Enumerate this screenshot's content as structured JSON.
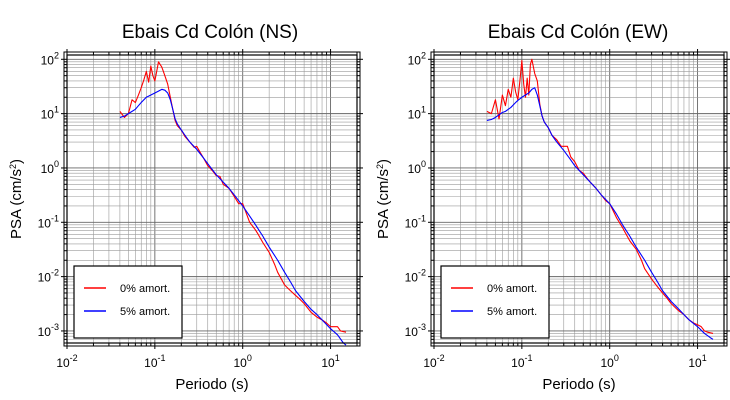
{
  "chart_data": [
    {
      "type": "line",
      "title": "Ebais Cd Colón (NS)",
      "xlabel": "Periodo (s)",
      "ylabel_main": "PSA (cm/s",
      "ylabel_sup": "2",
      "ylabel_tail": ")",
      "xscale": "log",
      "yscale": "log",
      "xlim": [
        0.01,
        20
      ],
      "ylim": [
        0.0006,
        120
      ],
      "grid": true,
      "legend_position": "bottom-left",
      "x_ticks": [
        {
          "value": 0.01,
          "base": "10",
          "exp": "-2"
        },
        {
          "value": 0.1,
          "base": "10",
          "exp": "-1"
        },
        {
          "value": 1,
          "base": "10",
          "exp": "0"
        },
        {
          "value": 10,
          "base": "10",
          "exp": "1"
        }
      ],
      "y_ticks": [
        {
          "value": 0.001,
          "base": "10",
          "exp": "-3"
        },
        {
          "value": 0.01,
          "base": "10",
          "exp": "-2"
        },
        {
          "value": 0.1,
          "base": "10",
          "exp": "-1"
        },
        {
          "value": 1,
          "base": "10",
          "exp": "0"
        },
        {
          "value": 10,
          "base": "10",
          "exp": "1"
        },
        {
          "value": 100,
          "base": "10",
          "exp": "2"
        }
      ],
      "series": [
        {
          "name": "0% amort.",
          "color": "#ff0000",
          "x": [
            0.04,
            0.045,
            0.05,
            0.055,
            0.06,
            0.065,
            0.07,
            0.075,
            0.08,
            0.085,
            0.09,
            0.095,
            0.1,
            0.105,
            0.11,
            0.115,
            0.12,
            0.13,
            0.14,
            0.15,
            0.16,
            0.17,
            0.18,
            0.2,
            0.22,
            0.25,
            0.28,
            0.3,
            0.33,
            0.36,
            0.4,
            0.45,
            0.5,
            0.55,
            0.6,
            0.7,
            0.8,
            0.9,
            1.0,
            1.2,
            1.4,
            1.5,
            1.7,
            2.0,
            2.3,
            2.5,
            3.0,
            3.5,
            4.0,
            4.5,
            5.0,
            6.0,
            7.0,
            8.0,
            9.0,
            10.0,
            11.0,
            12.0,
            13.0,
            15.0
          ],
          "y": [
            11,
            8.5,
            10,
            18,
            16,
            22,
            30,
            42,
            60,
            38,
            75,
            50,
            40,
            60,
            90,
            80,
            72,
            50,
            35,
            20,
            12,
            7.5,
            6,
            5,
            3.8,
            3,
            2.4,
            2.5,
            1.9,
            1.5,
            1.1,
            0.9,
            0.72,
            0.7,
            0.5,
            0.42,
            0.3,
            0.22,
            0.22,
            0.1,
            0.072,
            0.06,
            0.042,
            0.028,
            0.017,
            0.012,
            0.007,
            0.0055,
            0.0045,
            0.0038,
            0.0032,
            0.0022,
            0.0018,
            0.0016,
            0.0014,
            0.0012,
            0.0012,
            0.0012,
            0.001,
            0.00095
          ]
        },
        {
          "name": "5% amort.",
          "color": "#0000ff",
          "x": [
            0.04,
            0.045,
            0.05,
            0.055,
            0.06,
            0.065,
            0.07,
            0.075,
            0.08,
            0.085,
            0.09,
            0.1,
            0.11,
            0.12,
            0.13,
            0.14,
            0.15,
            0.16,
            0.17,
            0.18,
            0.2,
            0.22,
            0.25,
            0.3,
            0.35,
            0.4,
            0.5,
            0.6,
            0.7,
            0.8,
            1.0,
            1.2,
            1.4,
            1.7,
            2.0,
            2.5,
            3.0,
            3.5,
            4.0,
            5.0,
            6.0,
            7.0,
            8.0,
            10.0,
            12.0,
            14.0,
            15.0
          ],
          "y": [
            8.5,
            9,
            10,
            11,
            12,
            14,
            16,
            18,
            20,
            21,
            22,
            24,
            26,
            28,
            27,
            24,
            18,
            12,
            8,
            6.5,
            5,
            4,
            3,
            2.2,
            1.6,
            1.2,
            0.75,
            0.55,
            0.42,
            0.32,
            0.2,
            0.13,
            0.09,
            0.055,
            0.035,
            0.02,
            0.012,
            0.008,
            0.0055,
            0.0035,
            0.0025,
            0.002,
            0.0016,
            0.0011,
            0.00085,
            0.0006,
            0.00055
          ]
        }
      ]
    },
    {
      "type": "line",
      "title": "Ebais Cd Colón (EW)",
      "xlabel": "Periodo (s)",
      "ylabel_main": "PSA (cm/s",
      "ylabel_sup": "2",
      "ylabel_tail": ")",
      "xscale": "log",
      "yscale": "log",
      "xlim": [
        0.01,
        20
      ],
      "ylim": [
        0.0006,
        120
      ],
      "grid": true,
      "legend_position": "bottom-left",
      "x_ticks": [
        {
          "value": 0.01,
          "base": "10",
          "exp": "-2"
        },
        {
          "value": 0.1,
          "base": "10",
          "exp": "-1"
        },
        {
          "value": 1,
          "base": "10",
          "exp": "0"
        },
        {
          "value": 10,
          "base": "10",
          "exp": "1"
        }
      ],
      "y_ticks": [
        {
          "value": 0.001,
          "base": "10",
          "exp": "-3"
        },
        {
          "value": 0.01,
          "base": "10",
          "exp": "-2"
        },
        {
          "value": 0.1,
          "base": "10",
          "exp": "-1"
        },
        {
          "value": 1,
          "base": "10",
          "exp": "0"
        },
        {
          "value": 10,
          "base": "10",
          "exp": "1"
        },
        {
          "value": 100,
          "base": "10",
          "exp": "2"
        }
      ],
      "series": [
        {
          "name": "0% amort.",
          "color": "#ff0000",
          "x": [
            0.04,
            0.045,
            0.05,
            0.055,
            0.06,
            0.065,
            0.07,
            0.075,
            0.08,
            0.085,
            0.09,
            0.095,
            0.1,
            0.105,
            0.11,
            0.115,
            0.12,
            0.125,
            0.13,
            0.14,
            0.15,
            0.16,
            0.17,
            0.18,
            0.2,
            0.22,
            0.25,
            0.28,
            0.3,
            0.33,
            0.36,
            0.4,
            0.45,
            0.5,
            0.55,
            0.6,
            0.7,
            0.8,
            0.9,
            1.0,
            1.2,
            1.4,
            1.5,
            1.7,
            2.0,
            2.3,
            2.5,
            3.0,
            3.5,
            4.0,
            4.5,
            5.0,
            6.0,
            7.0,
            8.0,
            9.0,
            10.0,
            11.0,
            12.0,
            13.0,
            15.0
          ],
          "y": [
            11,
            10,
            18,
            8,
            22,
            14,
            28,
            20,
            45,
            25,
            18,
            40,
            95,
            35,
            20,
            45,
            22,
            80,
            100,
            55,
            40,
            15,
            9,
            7,
            5.5,
            4,
            3.3,
            2.5,
            2.5,
            2.5,
            1.6,
            1.3,
            0.9,
            0.8,
            0.65,
            0.55,
            0.42,
            0.32,
            0.25,
            0.22,
            0.12,
            0.08,
            0.065,
            0.045,
            0.032,
            0.02,
            0.014,
            0.009,
            0.0065,
            0.005,
            0.004,
            0.0032,
            0.0024,
            0.002,
            0.0016,
            0.0014,
            0.0013,
            0.0012,
            0.001,
            0.00095,
            0.0009
          ]
        },
        {
          "name": "5% amort.",
          "color": "#0000ff",
          "x": [
            0.04,
            0.045,
            0.05,
            0.055,
            0.06,
            0.065,
            0.07,
            0.075,
            0.08,
            0.085,
            0.09,
            0.1,
            0.11,
            0.12,
            0.13,
            0.14,
            0.15,
            0.16,
            0.17,
            0.18,
            0.2,
            0.22,
            0.25,
            0.3,
            0.35,
            0.4,
            0.5,
            0.6,
            0.7,
            0.8,
            1.0,
            1.2,
            1.4,
            1.7,
            2.0,
            2.5,
            3.0,
            3.5,
            4.0,
            5.0,
            6.0,
            7.0,
            8.0,
            10.0,
            12.0,
            14.0,
            15.0
          ],
          "y": [
            7.5,
            7.8,
            8.5,
            9.5,
            10.5,
            11,
            12,
            13,
            14.5,
            16,
            17.5,
            20,
            22,
            24,
            28,
            30,
            22,
            14,
            9,
            7,
            5.5,
            4,
            3,
            2.1,
            1.5,
            1.1,
            0.75,
            0.55,
            0.42,
            0.32,
            0.22,
            0.14,
            0.09,
            0.055,
            0.035,
            0.02,
            0.012,
            0.008,
            0.0055,
            0.0035,
            0.0026,
            0.002,
            0.0016,
            0.0012,
            0.0009,
            0.00075,
            0.0007
          ]
        }
      ]
    }
  ]
}
